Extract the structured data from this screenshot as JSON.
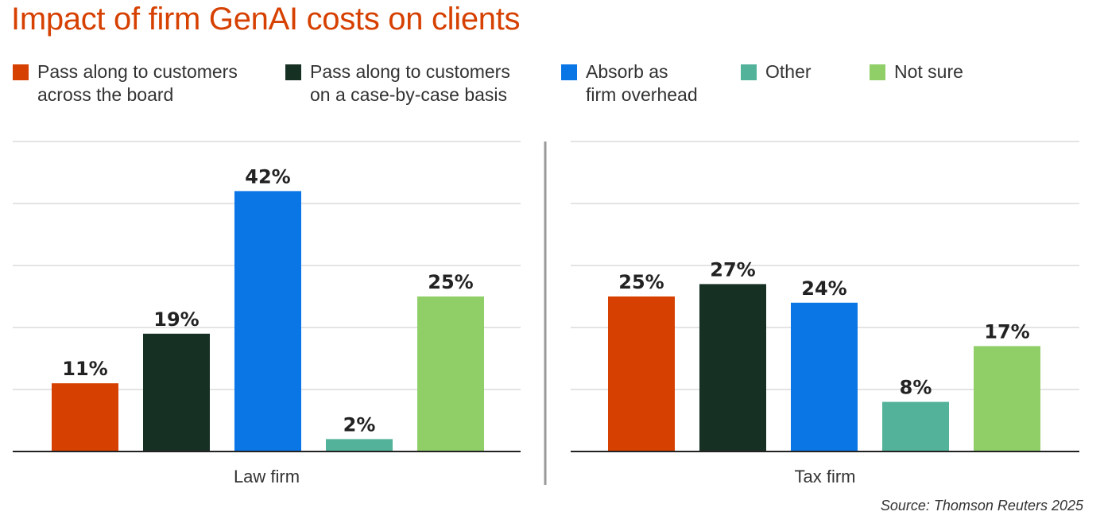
{
  "title": "Impact of firm GenAI costs on clients",
  "legend": [
    {
      "lines": [
        "Pass along to customers",
        "across the board"
      ],
      "color": "#d64000"
    },
    {
      "lines": [
        "Pass along to customers",
        "on a case-by-case basis"
      ],
      "color": "#173024"
    },
    {
      "lines": [
        "Absorb as",
        "firm overhead"
      ],
      "color": "#0a76e6"
    },
    {
      "lines": [
        "Other"
      ],
      "color": "#52b39a"
    },
    {
      "lines": [
        "Not sure"
      ],
      "color": "#90cf68"
    }
  ],
  "source": "Source: Thomson Reuters 2025",
  "chart_data": [
    {
      "type": "bar",
      "xlabel": "Law firm",
      "categories": [
        "Pass along to customers across the board",
        "Pass along to customers on a case-by-case basis",
        "Absorb as firm overhead",
        "Other",
        "Not sure"
      ],
      "values": [
        11,
        19,
        42,
        2,
        25
      ],
      "value_labels": [
        "11%",
        "19%",
        "42%",
        "2%",
        "25%"
      ],
      "colors": [
        "#d64000",
        "#173024",
        "#0a76e6",
        "#52b39a",
        "#90cf68"
      ],
      "ylim": [
        0,
        50
      ],
      "grid": true
    },
    {
      "type": "bar",
      "xlabel": "Tax firm",
      "categories": [
        "Pass along to customers across the board",
        "Pass along to customers on a case-by-case basis",
        "Absorb as firm overhead",
        "Other",
        "Not sure"
      ],
      "values": [
        25,
        27,
        24,
        8,
        17
      ],
      "value_labels": [
        "25%",
        "27%",
        "24%",
        "8%",
        "17%"
      ],
      "colors": [
        "#d64000",
        "#173024",
        "#0a76e6",
        "#52b39a",
        "#90cf68"
      ],
      "ylim": [
        0,
        50
      ],
      "grid": true
    }
  ]
}
